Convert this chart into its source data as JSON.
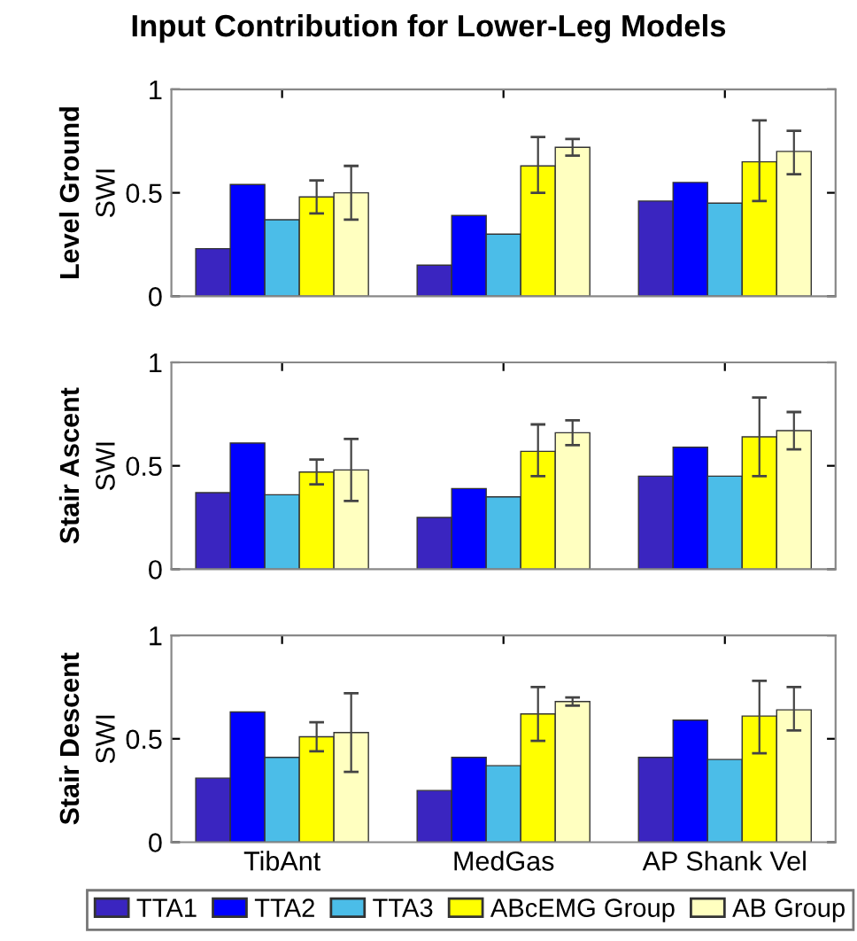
{
  "chart_data": [
    {
      "type": "bar",
      "title": "Input Contribution for Lower-Leg Models",
      "subtitle": "Level Ground",
      "ylabel": "SWI",
      "categories": [
        null,
        null,
        null
      ],
      "ylim": [
        0,
        1
      ],
      "yticks": [
        0,
        0.5,
        1
      ],
      "tick_labels": "y",
      "grid": false,
      "series": [
        {
          "color": "#3a25c0",
          "values": [
            0.23,
            0.15,
            0.46
          ]
        },
        {
          "color": "#0000ff",
          "values": [
            0.54,
            0.39,
            0.55
          ]
        },
        {
          "color": "#4bbde8",
          "values": [
            0.37,
            0.3,
            0.45
          ]
        },
        {
          "color": "#ffff00",
          "values": [
            0.48,
            0.63,
            0.65
          ],
          "errors": [
            [
              0.4,
              0.56
            ],
            [
              0.5,
              0.77
            ],
            [
              0.46,
              0.85
            ]
          ]
        },
        {
          "color": "#ffffc0",
          "values": [
            0.5,
            0.72,
            0.7
          ],
          "errors": [
            [
              0.37,
              0.63
            ],
            [
              0.68,
              0.76
            ],
            [
              0.59,
              0.8
            ]
          ]
        }
      ]
    },
    {
      "type": "bar",
      "subtitle": "Stair Ascent",
      "ylabel": "SWI",
      "categories": [
        null,
        null,
        null
      ],
      "ylim": [
        0,
        1
      ],
      "yticks": [
        0,
        0.5,
        1
      ],
      "tick_labels": "y",
      "grid": false,
      "series": [
        {
          "color": "#3a25c0",
          "values": [
            0.37,
            0.25,
            0.45
          ]
        },
        {
          "color": "#0000ff",
          "values": [
            0.61,
            0.39,
            0.59
          ]
        },
        {
          "color": "#4bbde8",
          "values": [
            0.36,
            0.35,
            0.45
          ]
        },
        {
          "color": "#ffff00",
          "values": [
            0.47,
            0.57,
            0.64
          ],
          "errors": [
            [
              0.41,
              0.53
            ],
            [
              0.45,
              0.7
            ],
            [
              0.45,
              0.83
            ]
          ]
        },
        {
          "color": "#ffffc0",
          "values": [
            0.48,
            0.66,
            0.67
          ],
          "errors": [
            [
              0.33,
              0.63
            ],
            [
              0.6,
              0.72
            ],
            [
              0.58,
              0.76
            ]
          ]
        }
      ]
    },
    {
      "type": "bar",
      "subtitle": "Stair Descent",
      "ylabel": "SWI",
      "categories": [
        "TibAnt",
        "MedGas",
        "AP Shank Vel"
      ],
      "ylim": [
        0,
        1
      ],
      "yticks": [
        0,
        0.5,
        1
      ],
      "grid": false,
      "legend": "bottom",
      "series": [
        {
          "name": "TTA1",
          "color": "#3a25c0",
          "values": [
            0.31,
            0.25,
            0.41
          ]
        },
        {
          "name": "TTA2",
          "color": "#0000ff",
          "values": [
            0.63,
            0.41,
            0.59
          ]
        },
        {
          "name": "TTA3",
          "color": "#4bbde8",
          "values": [
            0.41,
            0.37,
            0.4
          ]
        },
        {
          "name": "ABcEMG Group",
          "color": "#ffff00",
          "values": [
            0.51,
            0.62,
            0.61
          ],
          "errors": [
            [
              0.44,
              0.58
            ],
            [
              0.49,
              0.75
            ],
            [
              0.43,
              0.78
            ]
          ]
        },
        {
          "name": "AB Group",
          "color": "#ffffc0",
          "values": [
            0.53,
            0.68,
            0.64
          ],
          "errors": [
            [
              0.34,
              0.72
            ],
            [
              0.66,
              0.7
            ],
            [
              0.54,
              0.75
            ]
          ]
        }
      ]
    }
  ]
}
